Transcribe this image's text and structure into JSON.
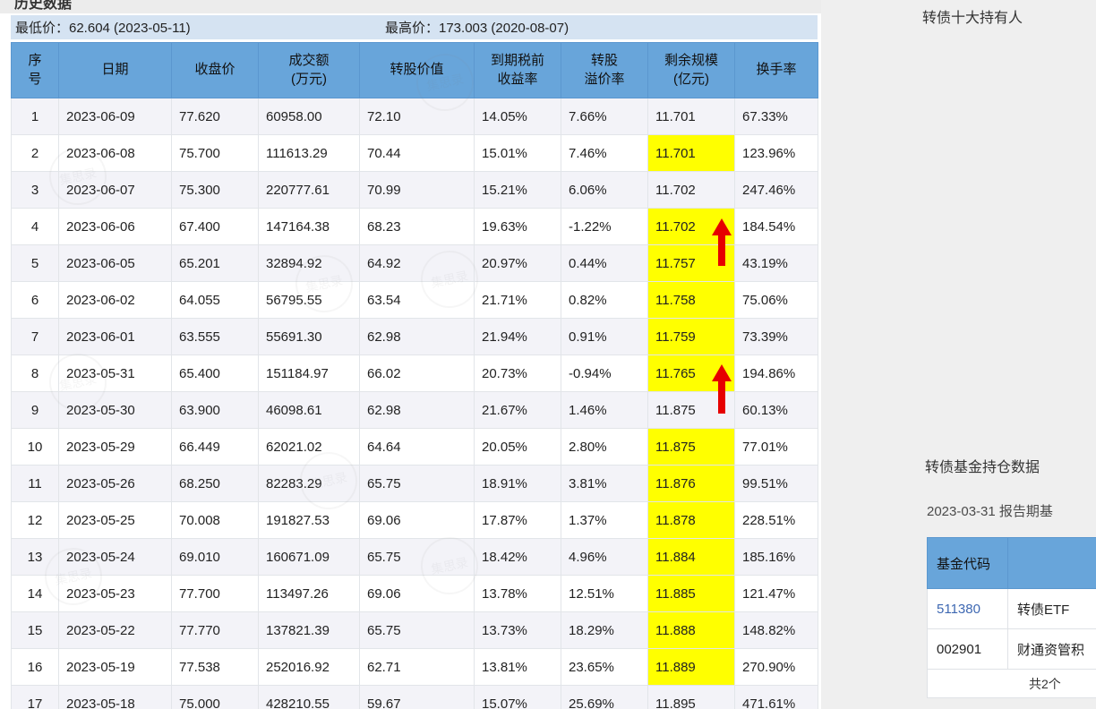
{
  "page": {
    "section_title": "历史数据",
    "price_bar": {
      "low": "最低价：62.604 (2023-05-11)",
      "high": "最高价：173.003 (2020-08-07)"
    }
  },
  "history_table": {
    "headers": [
      "序\n号",
      "日期",
      "收盘价",
      "成交额\n(万元)",
      "转股价值",
      "到期税前\n收益率",
      "转股\n溢价率",
      "剩余规模\n(亿元)",
      "换手率"
    ],
    "rows": [
      {
        "cells": [
          "1",
          "2023-06-09",
          "77.620",
          "60958.00",
          "72.10",
          "14.05%",
          "7.66%",
          "11.701",
          "67.33%"
        ],
        "scale_highlighted": false
      },
      {
        "cells": [
          "2",
          "2023-06-08",
          "75.700",
          "111613.29",
          "70.44",
          "15.01%",
          "7.46%",
          "11.701",
          "123.96%"
        ],
        "scale_highlighted": true
      },
      {
        "cells": [
          "3",
          "2023-06-07",
          "75.300",
          "220777.61",
          "70.99",
          "15.21%",
          "6.06%",
          "11.702",
          "247.46%"
        ],
        "scale_highlighted": false
      },
      {
        "cells": [
          "4",
          "2023-06-06",
          "67.400",
          "147164.38",
          "68.23",
          "19.63%",
          "-1.22%",
          "11.702",
          "184.54%"
        ],
        "scale_highlighted": true
      },
      {
        "cells": [
          "5",
          "2023-06-05",
          "65.201",
          "32894.92",
          "64.92",
          "20.97%",
          "0.44%",
          "11.757",
          "43.19%"
        ],
        "scale_highlighted": true
      },
      {
        "cells": [
          "6",
          "2023-06-02",
          "64.055",
          "56795.55",
          "63.54",
          "21.71%",
          "0.82%",
          "11.758",
          "75.06%"
        ],
        "scale_highlighted": true
      },
      {
        "cells": [
          "7",
          "2023-06-01",
          "63.555",
          "55691.30",
          "62.98",
          "21.94%",
          "0.91%",
          "11.759",
          "73.39%"
        ],
        "scale_highlighted": true
      },
      {
        "cells": [
          "8",
          "2023-05-31",
          "65.400",
          "151184.97",
          "66.02",
          "20.73%",
          "-0.94%",
          "11.765",
          "194.86%"
        ],
        "scale_highlighted": true
      },
      {
        "cells": [
          "9",
          "2023-05-30",
          "63.900",
          "46098.61",
          "62.98",
          "21.67%",
          "1.46%",
          "11.875",
          "60.13%"
        ],
        "scale_highlighted": false
      },
      {
        "cells": [
          "10",
          "2023-05-29",
          "66.449",
          "62021.02",
          "64.64",
          "20.05%",
          "2.80%",
          "11.875",
          "77.01%"
        ],
        "scale_highlighted": true
      },
      {
        "cells": [
          "11",
          "2023-05-26",
          "68.250",
          "82283.29",
          "65.75",
          "18.91%",
          "3.81%",
          "11.876",
          "99.51%"
        ],
        "scale_highlighted": true
      },
      {
        "cells": [
          "12",
          "2023-05-25",
          "70.008",
          "191827.53",
          "69.06",
          "17.87%",
          "1.37%",
          "11.878",
          "228.51%"
        ],
        "scale_highlighted": true
      },
      {
        "cells": [
          "13",
          "2023-05-24",
          "69.010",
          "160671.09",
          "65.75",
          "18.42%",
          "4.96%",
          "11.884",
          "185.16%"
        ],
        "scale_highlighted": true
      },
      {
        "cells": [
          "14",
          "2023-05-23",
          "77.700",
          "113497.26",
          "69.06",
          "13.78%",
          "12.51%",
          "11.885",
          "121.47%"
        ],
        "scale_highlighted": true
      },
      {
        "cells": [
          "15",
          "2023-05-22",
          "77.770",
          "137821.39",
          "65.75",
          "13.73%",
          "18.29%",
          "11.888",
          "148.82%"
        ],
        "scale_highlighted": true
      },
      {
        "cells": [
          "16",
          "2023-05-19",
          "77.538",
          "252016.92",
          "62.71",
          "13.81%",
          "23.65%",
          "11.889",
          "270.90%"
        ],
        "scale_highlighted": true
      },
      {
        "cells": [
          "17",
          "2023-05-18",
          "75.000",
          "428210.55",
          "59.67",
          "15.07%",
          "25.69%",
          "11.895",
          "471.61%"
        ],
        "scale_highlighted": false
      }
    ]
  },
  "annotations": {
    "up_arrow_count": 2,
    "up_arrow_locations": [
      "rows 4-5 of 剩余规模 column",
      "rows 8-9 of 剩余规模 column"
    ]
  },
  "right_panel": {
    "holders_title": "转债十大持有人",
    "fund_section_title": "转债基金持仓数据",
    "report_period_line": "2023-03-31 报告期基",
    "fund_table": {
      "code_header": "基金代码",
      "rows": [
        {
          "code": "511380",
          "name": "转债ETF"
        },
        {
          "code": "002901",
          "name": "财通资管积"
        }
      ],
      "footer": "共2个"
    }
  },
  "watermark": {
    "text": "集思录"
  },
  "colors": {
    "header_blue": "#68a5da",
    "highlight_yellow": "#ffff00",
    "arrow_red": "#e60000",
    "link_blue": "#3e68b2",
    "price_bar_blue": "#d5e3f2"
  }
}
